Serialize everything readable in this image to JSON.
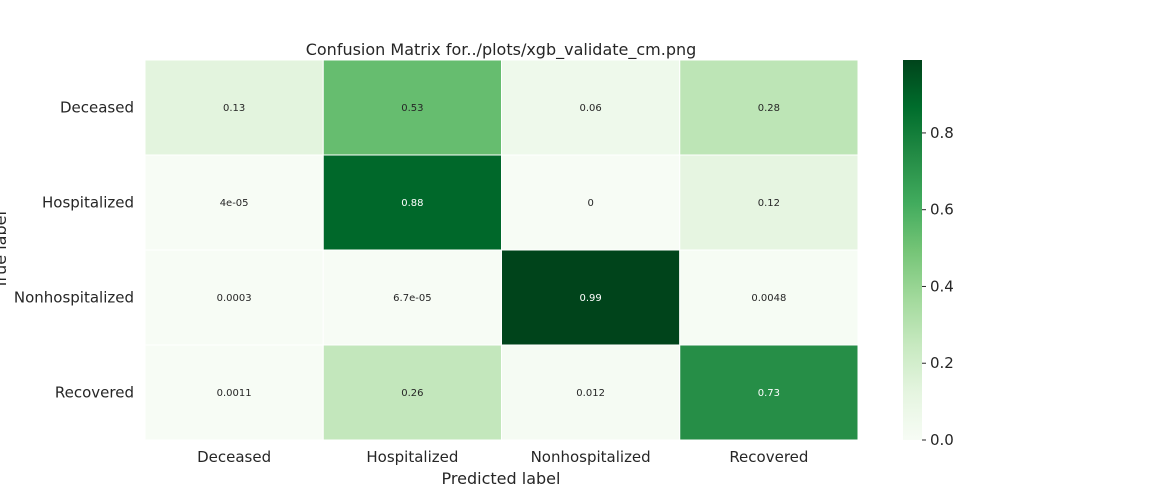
{
  "chart_data": {
    "type": "heatmap",
    "title": "Confusion Matrix for../plots/xgb_validate_cm.png",
    "xlabel": "Predicted label",
    "ylabel": "True label",
    "x_categories": [
      "Deceased",
      "Hospitalized",
      "Nonhospitalized",
      "Recovered"
    ],
    "y_categories": [
      "Deceased",
      "Hospitalized",
      "Nonhospitalized",
      "Recovered"
    ],
    "values": [
      [
        0.13,
        0.53,
        0.06,
        0.28
      ],
      [
        4e-05,
        0.88,
        0,
        0.12
      ],
      [
        0.0003,
        6.7e-05,
        0.99,
        0.0048
      ],
      [
        0.0011,
        0.26,
        0.012,
        0.73
      ]
    ],
    "cell_labels": [
      [
        "0.13",
        "0.53",
        "0.06",
        "0.28"
      ],
      [
        "4e-05",
        "0.88",
        "0",
        "0.12"
      ],
      [
        "0.0003",
        "6.7e-05",
        "0.99",
        "0.0048"
      ],
      [
        "0.0011",
        "0.26",
        "0.012",
        "0.73"
      ]
    ],
    "colormap": "Greens",
    "colorbar": {
      "range": [
        0,
        0.99
      ],
      "ticks": [
        0.0,
        0.2,
        0.4,
        0.6,
        0.8
      ],
      "tick_labels": [
        "0.0",
        "0.2",
        "0.4",
        "0.6",
        "0.8"
      ]
    },
    "grid": false,
    "legend": "colorbar-right"
  }
}
